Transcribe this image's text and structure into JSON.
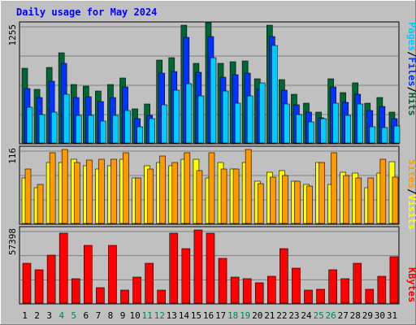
{
  "chart_data": [
    {
      "type": "bar",
      "title": "Daily usage for May 2024",
      "categories": [
        "1",
        "2",
        "3",
        "4",
        "5",
        "6",
        "7",
        "8",
        "9",
        "10",
        "11",
        "12",
        "13",
        "14",
        "15",
        "16",
        "17",
        "18",
        "19",
        "20",
        "21",
        "22",
        "23",
        "24",
        "25",
        "26",
        "27",
        "28",
        "29",
        "30",
        "31"
      ],
      "weekend_days": [
        "4",
        "5",
        "11",
        "12",
        "18",
        "19",
        "25",
        "26"
      ],
      "ymax_label": "1255",
      "ylim": [
        0,
        1255
      ],
      "legend": [
        "Pages",
        "Files",
        "Hits"
      ],
      "legend_colors": [
        "#00ccff",
        "#0033ff",
        "#006633"
      ],
      "series": [
        {
          "name": "Hits",
          "color": "#006633",
          "values": [
            790,
            570,
            800,
            950,
            620,
            600,
            550,
            620,
            690,
            360,
            410,
            880,
            900,
            1250,
            840,
            1270,
            840,
            860,
            870,
            680,
            1250,
            670,
            520,
            420,
            330,
            680,
            530,
            640,
            420,
            480,
            330
          ]
        },
        {
          "name": "Files",
          "color": "#0033ff",
          "values": [
            580,
            480,
            650,
            840,
            480,
            490,
            440,
            480,
            590,
            260,
            290,
            740,
            760,
            1120,
            750,
            1130,
            700,
            720,
            740,
            570,
            1130,
            560,
            400,
            330,
            270,
            590,
            430,
            520,
            340,
            390,
            260
          ]
        },
        {
          "name": "Pages",
          "color": "#00ccff",
          "values": [
            380,
            300,
            330,
            520,
            290,
            290,
            230,
            290,
            340,
            170,
            260,
            400,
            560,
            630,
            500,
            900,
            550,
            420,
            500,
            640,
            1030,
            410,
            300,
            220,
            260,
            420,
            290,
            410,
            170,
            160,
            180
          ]
        }
      ]
    },
    {
      "type": "bar",
      "categories": [
        "1",
        "2",
        "3",
        "4",
        "5",
        "6",
        "7",
        "8",
        "9",
        "10",
        "11",
        "12",
        "13",
        "14",
        "15",
        "16",
        "17",
        "18",
        "19",
        "20",
        "21",
        "22",
        "23",
        "24",
        "25",
        "26",
        "27",
        "28",
        "29",
        "30",
        "31"
      ],
      "ymax_label": "116",
      "ylim": [
        0,
        116
      ],
      "legend": [
        "Sites",
        "Visits"
      ],
      "legend_colors": [
        "#ff9900",
        "#ffff00"
      ],
      "series": [
        {
          "name": "Visits",
          "color": "#ffff00",
          "values": [
            70,
            55,
            95,
            95,
            100,
            90,
            85,
            90,
            100,
            70,
            90,
            95,
            90,
            100,
            100,
            70,
            95,
            85,
            95,
            65,
            80,
            82,
            65,
            60,
            95,
            60,
            80,
            78,
            55,
            78,
            96
          ]
        },
        {
          "name": "Sites",
          "color": "#ff9900",
          "values": [
            85,
            60,
            110,
            115,
            95,
            98,
            100,
            100,
            110,
            70,
            85,
            105,
            95,
            110,
            82,
            110,
            85,
            85,
            115,
            62,
            72,
            75,
            65,
            58,
            95,
            110,
            75,
            70,
            70,
            100,
            72
          ]
        }
      ]
    },
    {
      "type": "bar",
      "categories": [
        "1",
        "2",
        "3",
        "4",
        "5",
        "6",
        "7",
        "8",
        "9",
        "10",
        "11",
        "12",
        "13",
        "14",
        "15",
        "16",
        "17",
        "18",
        "19",
        "20",
        "21",
        "22",
        "23",
        "24",
        "25",
        "26",
        "27",
        "28",
        "29",
        "30",
        "31"
      ],
      "ymax_label": "57398",
      "ylim": [
        0,
        57398
      ],
      "legend": [
        "KBytes"
      ],
      "legend_colors": [
        "#ff0000"
      ],
      "series": [
        {
          "name": "KBytes",
          "color": "#ff0000",
          "values": [
            31000,
            26000,
            37000,
            54000,
            19000,
            45000,
            12000,
            45000,
            10000,
            20000,
            31000,
            10000,
            54000,
            42000,
            57000,
            54000,
            35000,
            20000,
            19000,
            16000,
            21000,
            42000,
            27000,
            10000,
            11000,
            26000,
            19000,
            31000,
            11000,
            21000,
            36000
          ]
        }
      ]
    }
  ]
}
